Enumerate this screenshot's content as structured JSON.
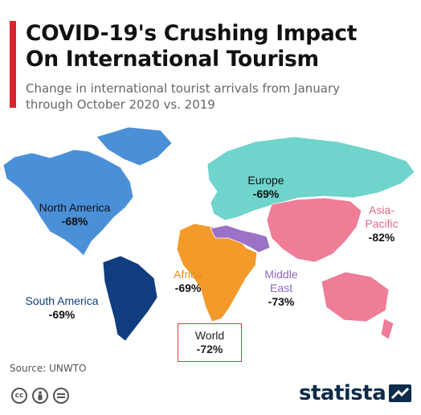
{
  "header": {
    "title_line1": "COVID-19's Crushing Impact",
    "title_line2": "On International Tourism",
    "subtitle_line1": "Change in international tourist arrivals from January",
    "subtitle_line2": "through October 2020 vs. 2019"
  },
  "chart_data": {
    "type": "choropleth-map",
    "title": "COVID-19's Crushing Impact On International Tourism",
    "subtitle": "Change in international tourist arrivals from January through October 2020 vs. 2019",
    "unit": "%",
    "regions": [
      {
        "name": "North America",
        "label_lines": [
          "North America"
        ],
        "value": "-68%",
        "number": -68,
        "color": "#4a90d9"
      },
      {
        "name": "South America",
        "label_lines": [
          "South America"
        ],
        "value": "-69%",
        "number": -69,
        "color": "#0f3d7f",
        "label_color": "#0f3d7f"
      },
      {
        "name": "Europe",
        "label_lines": [
          "Europe"
        ],
        "value": "-69%",
        "number": -69,
        "color": "#6ed4cc"
      },
      {
        "name": "Africa",
        "label_lines": [
          "Africa"
        ],
        "value": "-69%",
        "number": -69,
        "color": "#f39a2b",
        "label_color": "#e8891e"
      },
      {
        "name": "Middle East",
        "label_lines": [
          "Middle",
          "East"
        ],
        "value": "-73%",
        "number": -73,
        "color": "#9b72c8",
        "label_color": "#8e66c4"
      },
      {
        "name": "Asia-Pacific",
        "label_lines": [
          "Asia-",
          "Pacific"
        ],
        "value": "-82%",
        "number": -82,
        "color": "#ef7d97",
        "label_color": "#e36886"
      }
    ],
    "world": {
      "name": "World",
      "value": "-72%",
      "number": -72
    }
  },
  "footer": {
    "source": "Source: UNWTO",
    "logo": "statista",
    "license_icons": [
      "cc-icon",
      "by-icon",
      "nd-icon"
    ]
  }
}
